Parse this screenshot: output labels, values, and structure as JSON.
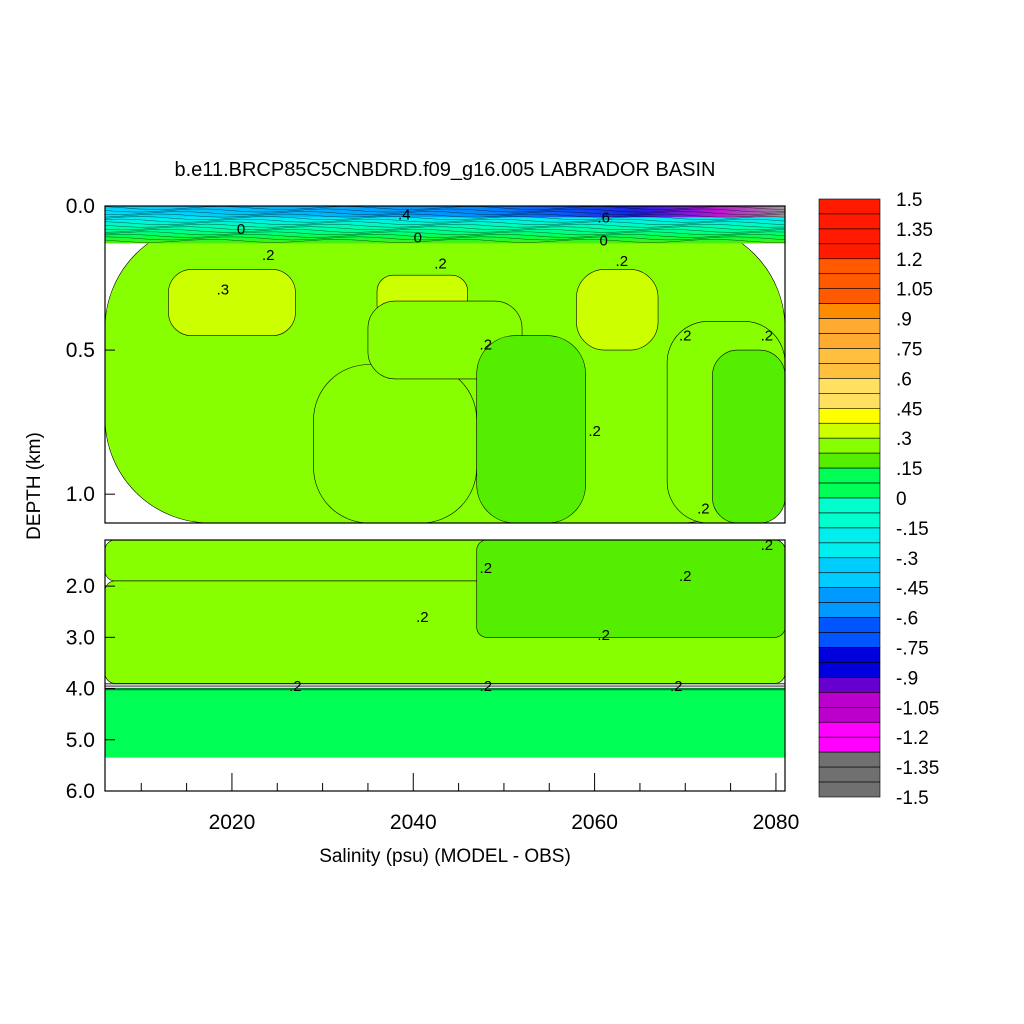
{
  "chart_data": {
    "type": "heatmap",
    "title": "b.e11.BRCP85C5CNBDRD.f09_g16.005 LABRADOR BASIN",
    "xlabel": "Salinity (psu) (MODEL - OBS)",
    "ylabel": "DEPTH (km)",
    "xlim": [
      2006,
      2081
    ],
    "x_ticks": [
      "2020",
      "2040",
      "2060",
      "2080"
    ],
    "upper_panel": {
      "ylim": [
        0.0,
        1.1
      ],
      "y_ticks": [
        "0.0",
        "0.5",
        "1.0"
      ]
    },
    "lower_panel": {
      "ylim": [
        1.1,
        6.0
      ],
      "y_ticks": [
        "2.0",
        "3.0",
        "4.0",
        "5.0",
        "6.0"
      ]
    },
    "colorbar": {
      "labels": [
        "1.5",
        "1.35",
        "1.2",
        "1.05",
        ".9",
        ".75",
        ".6",
        ".45",
        ".3",
        ".15",
        "0",
        "-.15",
        "-.3",
        "-.45",
        "-.6",
        "-.75",
        "-.9",
        "-1.05",
        "-1.2",
        "-1.35",
        "-1.5"
      ],
      "range": [
        -1.5,
        1.5
      ],
      "stops": [
        {
          "value": 1.5,
          "color": "#b40000"
        },
        {
          "value": 1.2,
          "color": "#ff1a00"
        },
        {
          "value": 1.0,
          "color": "#ff5a00"
        },
        {
          "value": 0.9,
          "color": "#ff8c00"
        },
        {
          "value": 0.75,
          "color": "#ffaa30"
        },
        {
          "value": 0.6,
          "color": "#ffc040"
        },
        {
          "value": 0.45,
          "color": "#ffe060"
        },
        {
          "value": 0.35,
          "color": "#ffff00"
        },
        {
          "value": 0.3,
          "color": "#ccff00"
        },
        {
          "value": 0.2,
          "color": "#88ff00"
        },
        {
          "value": 0.15,
          "color": "#55ee00"
        },
        {
          "value": 0.0,
          "color": "#00ff55"
        },
        {
          "value": -0.15,
          "color": "#00ffcc"
        },
        {
          "value": -0.3,
          "color": "#00eeee"
        },
        {
          "value": -0.45,
          "color": "#00ccff"
        },
        {
          "value": -0.6,
          "color": "#0099ff"
        },
        {
          "value": -0.75,
          "color": "#0055ff"
        },
        {
          "value": -0.9,
          "color": "#0000dd"
        },
        {
          "value": -1.0,
          "color": "#6600cc"
        },
        {
          "value": -1.1,
          "color": "#bb00cc"
        },
        {
          "value": -1.25,
          "color": "#ff00ff"
        },
        {
          "value": -1.3,
          "color": "#dddddd"
        },
        {
          "value": -1.5,
          "color": "#707070"
        }
      ]
    },
    "regions": {
      "upper": [
        {
          "value": 0.25,
          "x0": 2006,
          "x1": 2081,
          "y0": 0.06,
          "y1": 1.1
        },
        {
          "value": 0.3,
          "x0": 2013,
          "x1": 2027,
          "y0": 0.22,
          "y1": 0.45
        },
        {
          "value": 0.3,
          "x0": 2058,
          "x1": 2067,
          "y0": 0.22,
          "y1": 0.5
        },
        {
          "value": 0.3,
          "x0": 2036,
          "x1": 2046,
          "y0": 0.24,
          "y1": 0.4
        },
        {
          "value": 0.2,
          "x0": 2029,
          "x1": 2047,
          "y0": 0.55,
          "y1": 1.1
        },
        {
          "value": 0.2,
          "x0": 2035,
          "x1": 2052,
          "y0": 0.33,
          "y1": 0.6
        },
        {
          "value": 0.15,
          "x0": 2047,
          "x1": 2059,
          "y0": 0.45,
          "y1": 1.1
        },
        {
          "value": 0.2,
          "x0": 2068,
          "x1": 2081,
          "y0": 0.4,
          "y1": 1.1
        },
        {
          "value": 0.15,
          "x0": 2073,
          "x1": 2081,
          "y0": 0.5,
          "y1": 1.1
        }
      ],
      "lower": [
        {
          "value": 0.25,
          "x0": 2006,
          "x1": 2081,
          "y0": 1.1,
          "y1": 1.9
        },
        {
          "value": 0.2,
          "x0": 2006,
          "x1": 2081,
          "y0": 1.9,
          "y1": 3.9
        },
        {
          "value": 0.15,
          "x0": 2047,
          "x1": 2081,
          "y0": 1.1,
          "y1": 3.0
        },
        {
          "value": 0.05,
          "x0": 2006,
          "x1": 2081,
          "y0": 4.0,
          "y1": 5.35
        }
      ],
      "surface_band": {
        "y0": 0.0,
        "y1": 0.13
      }
    },
    "contour_labels": [
      {
        "text": "0",
        "x": 2021,
        "y": 0.08,
        "panel": "upper"
      },
      {
        "text": ".2",
        "x": 2024,
        "y": 0.17,
        "panel": "upper"
      },
      {
        "text": ".3",
        "x": 2019,
        "y": 0.29,
        "panel": "upper"
      },
      {
        "text": ".4",
        "x": 2039,
        "y": 0.03,
        "panel": "upper"
      },
      {
        "text": "0",
        "x": 2040.5,
        "y": 0.11,
        "panel": "upper"
      },
      {
        "text": ".2",
        "x": 2043,
        "y": 0.2,
        "panel": "upper"
      },
      {
        "text": ".6",
        "x": 2061,
        "y": 0.04,
        "panel": "upper"
      },
      {
        "text": "0",
        "x": 2061,
        "y": 0.12,
        "panel": "upper"
      },
      {
        "text": ".2",
        "x": 2063,
        "y": 0.19,
        "panel": "upper"
      },
      {
        "text": ".2",
        "x": 2048,
        "y": 0.48,
        "panel": "upper"
      },
      {
        "text": ".2",
        "x": 2070,
        "y": 0.45,
        "panel": "upper"
      },
      {
        "text": ".2",
        "x": 2079,
        "y": 0.45,
        "panel": "upper"
      },
      {
        "text": ".2",
        "x": 2060,
        "y": 0.78,
        "panel": "upper"
      },
      {
        "text": ".2",
        "x": 2072,
        "y": 1.05,
        "panel": "upper"
      },
      {
        "text": ".2",
        "x": 2079,
        "y": 1.2,
        "panel": "lower"
      },
      {
        "text": ".2",
        "x": 2048,
        "y": 1.65,
        "panel": "lower"
      },
      {
        "text": ".2",
        "x": 2070,
        "y": 1.8,
        "panel": "lower"
      },
      {
        "text": ".2",
        "x": 2041,
        "y": 2.6,
        "panel": "lower"
      },
      {
        "text": ".2",
        "x": 2061,
        "y": 2.95,
        "panel": "lower"
      },
      {
        "text": ".2",
        "x": 2027,
        "y": 3.95,
        "panel": "lower"
      },
      {
        "text": ".2",
        "x": 2048,
        "y": 3.95,
        "panel": "lower"
      },
      {
        "text": ".2",
        "x": 2069,
        "y": 3.95,
        "panel": "lower"
      }
    ]
  }
}
